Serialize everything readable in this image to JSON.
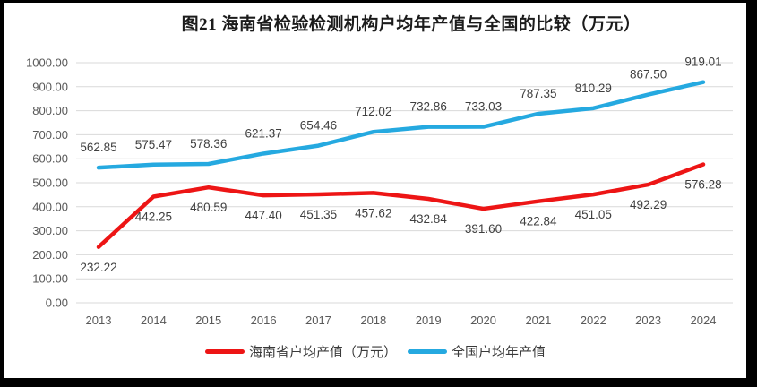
{
  "title": "图21  海南省检验检测机构户均年产值与全国的比较（万元）",
  "chart_data": {
    "type": "line",
    "title": "图21  海南省检验检测机构户均年产值与全国的比较（万元）",
    "categories": [
      "2013",
      "2014",
      "2015",
      "2016",
      "2017",
      "2018",
      "2019",
      "2020",
      "2021",
      "2022",
      "2023",
      "2024"
    ],
    "series": [
      {
        "name": "海南省户均产值（万元）",
        "color": "#ed1515",
        "label_position": "below",
        "values": [
          232.22,
          442.25,
          480.59,
          447.4,
          451.35,
          457.62,
          432.84,
          391.6,
          422.84,
          451.05,
          492.29,
          576.28
        ]
      },
      {
        "name": "全国户均年产值",
        "color": "#25a9e0",
        "label_position": "above",
        "values": [
          562.85,
          575.47,
          578.36,
          621.37,
          654.46,
          712.02,
          732.86,
          733.03,
          787.35,
          810.29,
          867.5,
          919.01
        ]
      }
    ],
    "ylim": [
      0,
      1000
    ],
    "ytick_step": 100,
    "value_decimals": 2,
    "grid": "horizontal-only",
    "legend_position": "bottom",
    "gridline_color": "#d9d9d9",
    "axis_text_color": "#595959",
    "label_text_color": "#3f3f3f"
  },
  "legend": {
    "items": [
      {
        "label": "海南省户均产值（万元）",
        "color": "#ed1515"
      },
      {
        "label": "全国户均年产值",
        "color": "#25a9e0"
      }
    ]
  }
}
